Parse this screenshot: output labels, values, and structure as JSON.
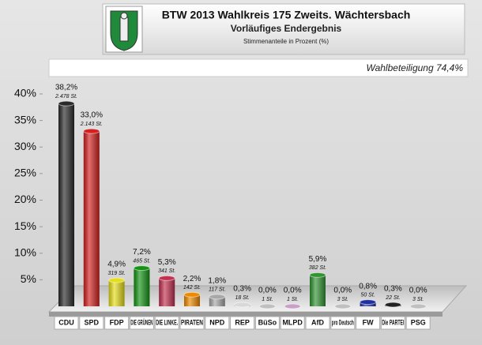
{
  "chart_data": {
    "type": "bar",
    "title": "BTW 2013 Wahlkreis 175 Zweits. Wächtersbach",
    "subtitle": "Vorläufiges Endergebnis",
    "axis_label": "Stimmenanteile in Prozent (%)",
    "annotation": "Wahlbeteiligung 74,4%",
    "categories": [
      "CDU",
      "SPD",
      "FDP",
      "DIE GRÜNEN",
      "DIE LINKE.",
      "PIRATEN",
      "NPD",
      "REP",
      "BüSo",
      "MLPD",
      "AfD",
      "pro Deutsch",
      "FW",
      "Die PARTEI",
      "PSG"
    ],
    "values": [
      38.2,
      33.0,
      4.9,
      7.2,
      5.3,
      2.2,
      1.8,
      0.3,
      0.0,
      0.0,
      5.9,
      0.0,
      0.8,
      0.3,
      0.0
    ],
    "value_labels": [
      "38,2%",
      "33,0%",
      "4,9%",
      "7,2%",
      "5,3%",
      "2,2%",
      "1,8%",
      "0,3%",
      "0,0%",
      "0,0%",
      "5,9%",
      "0,0%",
      "0,8%",
      "0,3%",
      "0,0%"
    ],
    "vote_labels": [
      "2.478 St.",
      "2.143 St.",
      "319 St.",
      "465 St.",
      "341 St.",
      "142 St.",
      "117 St.",
      "18 St.",
      "1 St.",
      "1 St.",
      "382 St.",
      "3 St.",
      "50 St.",
      "22 St.",
      "3 St."
    ],
    "colors": [
      "#2a2a2a",
      "#d42020",
      "#e6de18",
      "#149414",
      "#c43050",
      "#ee8a00",
      "#a8a8a8",
      "#d8d8d8",
      "#c0c0c0",
      "#c8a0c8",
      "#329432",
      "#c0c0c0",
      "#2030a0",
      "#222222",
      "#c0c0c0"
    ],
    "ylim": [
      0,
      42
    ],
    "yticks": [
      {
        "value": 5,
        "label": "5%"
      },
      {
        "value": 10,
        "label": "10%"
      },
      {
        "value": 15,
        "label": "15%"
      },
      {
        "value": 20,
        "label": "20%"
      },
      {
        "value": 25,
        "label": "25%"
      },
      {
        "value": 30,
        "label": "30%"
      },
      {
        "value": 35,
        "label": "35%"
      },
      {
        "value": 40,
        "label": "40%"
      }
    ]
  }
}
